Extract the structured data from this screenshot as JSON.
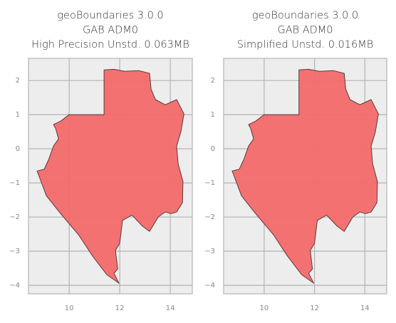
{
  "chart_data": [
    {
      "type": "polygon",
      "title": [
        "geoBoundaries 3.0.0",
        "GAB ADM0",
        "High Precision Unstd. 0.063MB"
      ],
      "x": [
        10.0,
        11.38,
        11.38,
        11.77,
        12.2,
        12.76,
        13.18,
        13.24,
        13.41,
        13.8,
        14.25,
        14.54,
        14.42,
        14.25,
        14.31,
        14.5,
        14.48,
        14.25,
        14.03,
        13.8,
        13.52,
        13.18,
        12.9,
        12.48,
        12.11,
        12.0,
        11.83,
        11.92,
        11.77,
        11.97,
        11.49,
        10.93,
        10.37,
        9.66,
        9.1,
        8.73,
        9.01,
        9.18,
        9.38,
        9.58,
        9.46,
        9.38,
        9.66
      ],
      "values": [
        1.0,
        1.0,
        2.31,
        2.33,
        2.27,
        2.29,
        2.21,
        1.75,
        1.44,
        1.29,
        1.44,
        1.02,
        0.5,
        0.08,
        -0.44,
        -0.96,
        -1.58,
        -1.85,
        -1.9,
        -1.85,
        -2.0,
        -2.42,
        -2.27,
        -1.94,
        -2.1,
        -2.77,
        -2.98,
        -3.52,
        -3.65,
        -3.94,
        -3.69,
        -3.15,
        -2.52,
        -1.9,
        -1.38,
        -0.65,
        -0.6,
        -0.33,
        0.08,
        0.29,
        0.6,
        0.71,
        0.81
      ],
      "color": "#f46a6c",
      "xlim": [
        8.39,
        14.87
      ],
      "ylim": [
        -4.25,
        2.65
      ],
      "xticks": [
        10,
        12,
        14
      ],
      "yticks": [
        {
          "value": -4,
          "label": "−4"
        },
        {
          "value": -3,
          "label": "−3"
        },
        {
          "value": -2,
          "label": "−2"
        },
        {
          "value": -1,
          "label": "−1"
        },
        0,
        1,
        2
      ],
      "grid": true
    },
    {
      "type": "polygon",
      "title": [
        "geoBoundaries 3.0.0",
        "GAB ADM0",
        "Simplified Unstd. 0.016MB"
      ],
      "x": [
        10.0,
        11.38,
        11.38,
        11.77,
        12.2,
        12.76,
        13.18,
        13.24,
        13.41,
        13.8,
        14.25,
        14.54,
        14.42,
        14.25,
        14.31,
        14.5,
        14.48,
        14.25,
        14.03,
        13.8,
        13.52,
        13.18,
        12.9,
        12.48,
        12.11,
        12.0,
        11.83,
        11.92,
        11.77,
        11.97,
        11.49,
        10.93,
        10.37,
        9.66,
        9.1,
        8.73,
        9.01,
        9.18,
        9.38,
        9.58,
        9.46,
        9.38,
        9.66
      ],
      "values": [
        1.0,
        1.0,
        2.31,
        2.33,
        2.27,
        2.29,
        2.21,
        1.75,
        1.44,
        1.29,
        1.44,
        1.02,
        0.5,
        0.08,
        -0.44,
        -0.96,
        -1.58,
        -1.85,
        -1.9,
        -1.85,
        -2.0,
        -2.42,
        -2.27,
        -1.94,
        -2.1,
        -2.77,
        -2.98,
        -3.52,
        -3.65,
        -3.94,
        -3.69,
        -3.15,
        -2.52,
        -1.9,
        -1.38,
        -0.65,
        -0.6,
        -0.33,
        0.08,
        0.29,
        0.6,
        0.71,
        0.81
      ],
      "color": "#f46a6c",
      "xlim": [
        8.39,
        14.87
      ],
      "ylim": [
        -4.25,
        2.65
      ],
      "xticks": [
        10,
        12,
        14
      ],
      "yticks": [
        {
          "value": -4,
          "label": "−4"
        },
        {
          "value": -3,
          "label": "−3"
        },
        {
          "value": -2,
          "label": "−2"
        },
        {
          "value": -1,
          "label": "−1"
        },
        0,
        1,
        2
      ],
      "grid": true
    }
  ]
}
